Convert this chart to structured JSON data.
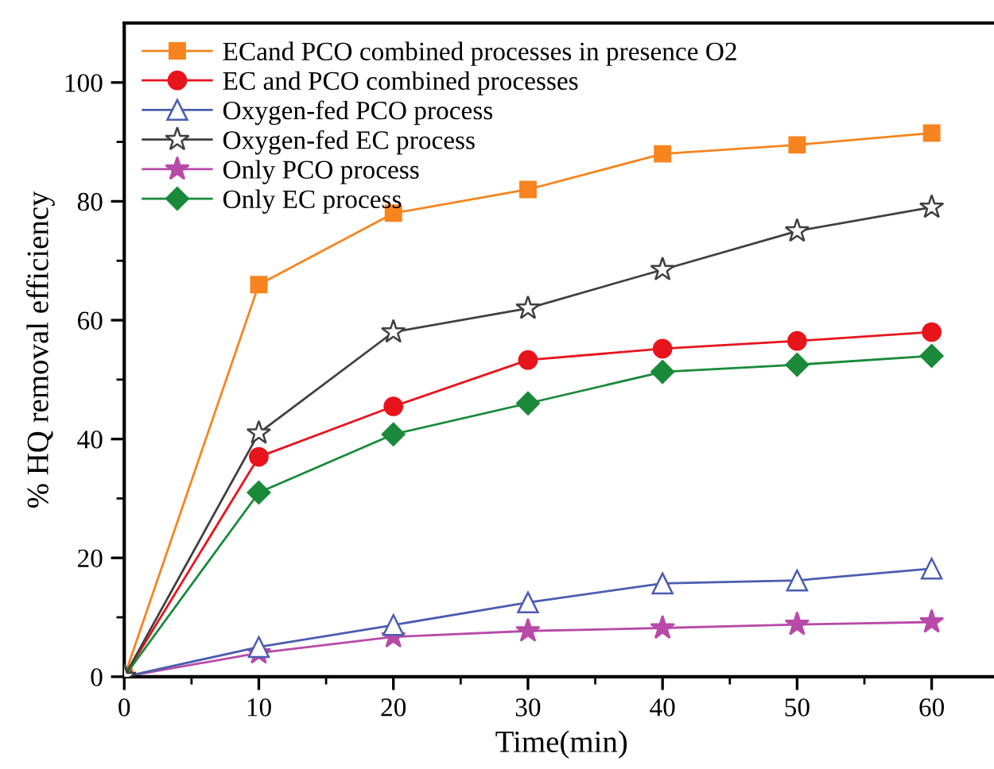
{
  "chart_data": {
    "type": "line",
    "xlabel": "Time(min)",
    "ylabel": "% HQ removal efficiency",
    "x": [
      0,
      10,
      20,
      30,
      40,
      50,
      60
    ],
    "xlim": [
      0,
      65
    ],
    "ylim": [
      0,
      110
    ],
    "xticks": [
      0,
      {
        "value": 5,
        "label": null
      },
      10,
      {
        "value": 15,
        "label": null
      },
      20,
      {
        "value": 25,
        "label": null
      },
      30,
      {
        "value": 35,
        "label": null
      },
      40,
      {
        "value": 45,
        "label": null
      },
      50,
      {
        "value": 55,
        "label": null
      },
      60
    ],
    "yticks": [
      0,
      {
        "value": 10,
        "label": null
      },
      20,
      {
        "value": 30,
        "label": null
      },
      40,
      {
        "value": 50,
        "label": null
      },
      60,
      {
        "value": 70,
        "label": null
      },
      80,
      {
        "value": 90,
        "label": null
      },
      100
    ],
    "legend": "top left",
    "grid": false,
    "line_style": "solid",
    "series": [
      {
        "name": "ECand PCO combined processes in presence O2",
        "color": "#f7841e",
        "marker": "square",
        "values": [
          0,
          66,
          78,
          82,
          88,
          89.5,
          91.5
        ]
      },
      {
        "name": "EC and PCO combined processes",
        "color": "#e8141c",
        "marker": "circle",
        "values": [
          0,
          37,
          45.5,
          53.3,
          55.2,
          56.5,
          58
        ]
      },
      {
        "name": "Oxygen-fed PCO process",
        "color": "#4a5db0",
        "marker": "triangle",
        "values": [
          0,
          5,
          8.7,
          12.5,
          15.7,
          16.2,
          18.2
        ]
      },
      {
        "name": "Oxygen-fed EC process",
        "color": "#404040",
        "marker": "star",
        "values": [
          0,
          41,
          58,
          62,
          68.5,
          75,
          79
        ]
      },
      {
        "name": "Only PCO process",
        "color": "#b84aa8",
        "marker": "star",
        "values": [
          0,
          4,
          6.7,
          7.7,
          8.2,
          8.8,
          9.2
        ]
      },
      {
        "name": "Only EC process",
        "color": "#1a8a3a",
        "marker": "diamond",
        "values": [
          0,
          31,
          40.8,
          46,
          51.3,
          52.5,
          54
        ]
      }
    ]
  }
}
